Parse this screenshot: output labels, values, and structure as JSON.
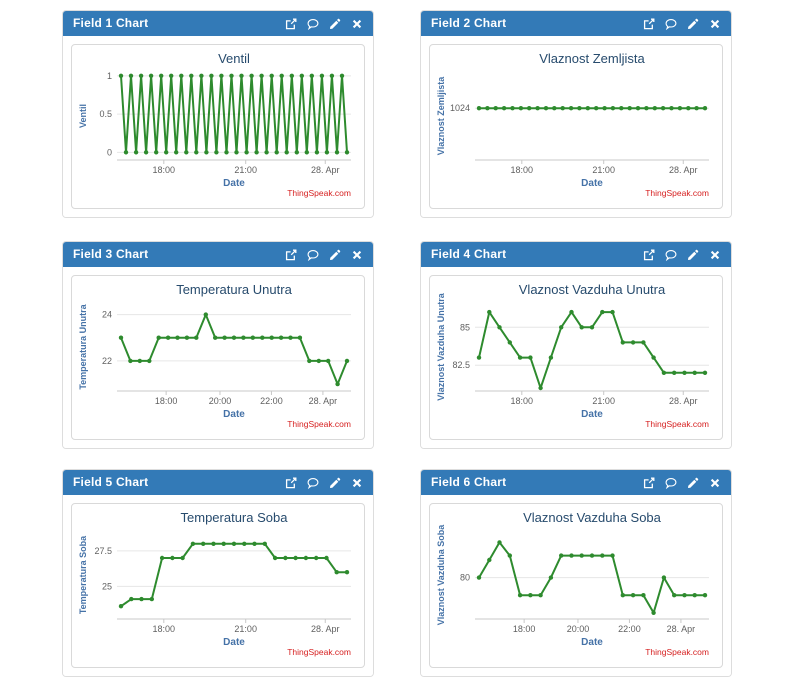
{
  "page": {
    "background": "#ffffff"
  },
  "colors": {
    "header_bg": "#337ab7",
    "header_text": "#ffffff",
    "panel_border": "#dddddd",
    "chart_box_border": "#d9d9d9",
    "line": "#2e8b2e",
    "chart_title": "#274b6d",
    "axis_title": "#4572a7",
    "tick_label": "#606060",
    "grid": "#e6e6e6",
    "axis_line": "#c8c8c8",
    "credits": "#d62020"
  },
  "header_icons": [
    "external-link-icon",
    "comment-icon",
    "edit-icon",
    "close-icon"
  ],
  "panels": [
    {
      "header": {
        "title": "Field 1 Chart"
      }
    },
    {
      "header": {
        "title": "Field 2 Chart"
      }
    },
    {
      "header": {
        "title": "Field 3 Chart"
      }
    },
    {
      "header": {
        "title": "Field 4 Chart"
      }
    },
    {
      "header": {
        "title": "Field 5 Chart"
      }
    },
    {
      "header": {
        "title": "Field 6 Chart"
      }
    }
  ],
  "chart_data": [
    {
      "type": "line",
      "title": "Ventil",
      "ylabel": "Ventil",
      "xlabel": "Date",
      "credits": "ThingSpeak.com",
      "grid": true,
      "legend": false,
      "ylim": [
        -0.1,
        1.05
      ],
      "yticks": [
        {
          "v": 0,
          "label": "0"
        },
        {
          "v": 0.5,
          "label": "0.5"
        },
        {
          "v": 1,
          "label": "1"
        }
      ],
      "xticks": [
        {
          "label": "18:00",
          "pos": 0.2
        },
        {
          "label": "21:00",
          "pos": 0.55
        },
        {
          "label": "28. Apr",
          "pos": 0.89
        }
      ],
      "values": [
        1,
        0,
        1,
        0,
        1,
        0,
        1,
        0,
        1,
        0,
        1,
        0,
        1,
        0,
        1,
        0,
        1,
        0,
        1,
        0,
        1,
        0,
        1,
        0,
        1,
        0,
        1,
        0,
        1,
        0,
        1,
        0,
        1,
        0,
        1,
        0,
        1,
        0,
        1,
        0,
        1,
        0,
        1,
        0,
        1,
        0
      ]
    },
    {
      "type": "line",
      "title": "Vlaznost Zemljista",
      "ylabel": "Vlaznost Zemljista",
      "xlabel": "Date",
      "credits": "ThingSpeak.com",
      "grid": true,
      "legend": false,
      "ylim": [
        1014,
        1031
      ],
      "yticks": [
        {
          "v": 1024,
          "label": "1024"
        }
      ],
      "xticks": [
        {
          "label": "18:00",
          "pos": 0.2
        },
        {
          "label": "21:00",
          "pos": 0.55
        },
        {
          "label": "28. Apr",
          "pos": 0.89
        }
      ],
      "values": [
        1024,
        1024,
        1024,
        1024,
        1024,
        1024,
        1024,
        1024,
        1024,
        1024,
        1024,
        1024,
        1024,
        1024,
        1024,
        1024,
        1024,
        1024,
        1024,
        1024,
        1024,
        1024,
        1024,
        1024,
        1024,
        1024,
        1024,
        1024
      ]
    },
    {
      "type": "line",
      "title": "Temperatura Unutra",
      "ylabel": "Temperatura Unutra",
      "xlabel": "Date",
      "credits": "ThingSpeak.com",
      "grid": true,
      "legend": false,
      "ylim": [
        20.7,
        24.5
      ],
      "yticks": [
        {
          "v": 22,
          "label": "22"
        },
        {
          "v": 24,
          "label": "24"
        }
      ],
      "xticks": [
        {
          "label": "18:00",
          "pos": 0.21
        },
        {
          "label": "20:00",
          "pos": 0.44
        },
        {
          "label": "22:00",
          "pos": 0.66
        },
        {
          "label": "28. Apr",
          "pos": 0.88
        }
      ],
      "values": [
        23,
        22,
        22,
        22,
        23,
        23,
        23,
        23,
        23,
        24,
        23,
        23,
        23,
        23,
        23,
        23,
        23,
        23,
        23,
        23,
        22,
        22,
        22,
        21,
        22
      ]
    },
    {
      "type": "line",
      "title": "Vlaznost Vazduha Unutra",
      "ylabel": "Vlaznost Vazduha Unutra",
      "xlabel": "Date",
      "credits": "ThingSpeak.com",
      "grid": true,
      "legend": false,
      "ylim": [
        80.8,
        86.6
      ],
      "yticks": [
        {
          "v": 82.5,
          "label": "82.5"
        },
        {
          "v": 85,
          "label": "85"
        }
      ],
      "xticks": [
        {
          "label": "18:00",
          "pos": 0.2
        },
        {
          "label": "21:00",
          "pos": 0.55
        },
        {
          "label": "28. Apr",
          "pos": 0.89
        }
      ],
      "values": [
        83,
        86,
        85,
        84,
        83,
        83,
        81,
        83,
        85,
        86,
        85,
        85,
        86,
        86,
        84,
        84,
        84,
        83,
        82,
        82,
        82,
        82,
        82
      ]
    },
    {
      "type": "line",
      "title": "Temperatura Soba",
      "ylabel": "Temperatura Soba",
      "xlabel": "Date",
      "credits": "ThingSpeak.com",
      "grid": true,
      "legend": false,
      "ylim": [
        22.7,
        28.9
      ],
      "yticks": [
        {
          "v": 25,
          "label": "25"
        },
        {
          "v": 27.5,
          "label": "27.5"
        }
      ],
      "xticks": [
        {
          "label": "18:00",
          "pos": 0.2
        },
        {
          "label": "21:00",
          "pos": 0.55
        },
        {
          "label": "28. Apr",
          "pos": 0.89
        }
      ],
      "values": [
        23.6,
        24.1,
        24.1,
        24.1,
        27,
        27,
        27,
        28,
        28,
        28,
        28,
        28,
        28,
        28,
        28,
        27,
        27,
        27,
        27,
        27,
        27,
        26,
        26
      ]
    },
    {
      "type": "line",
      "title": "Vlaznost Vazduha Soba",
      "ylabel": "Vlaznost Vazduha Soba",
      "xlabel": "Date",
      "credits": "ThingSpeak.com",
      "grid": true,
      "legend": false,
      "ylim": [
        75.3,
        85.3
      ],
      "yticks": [
        {
          "v": 80,
          "label": "80"
        }
      ],
      "xticks": [
        {
          "label": "18:00",
          "pos": 0.21
        },
        {
          "label": "20:00",
          "pos": 0.44
        },
        {
          "label": "22:00",
          "pos": 0.66
        },
        {
          "label": "28. Apr",
          "pos": 0.88
        }
      ],
      "values": [
        80,
        82,
        84,
        82.5,
        78,
        78,
        78,
        80,
        82.5,
        82.5,
        82.5,
        82.5,
        82.5,
        82.5,
        78,
        78,
        78,
        76,
        80,
        78,
        78,
        78,
        78
      ]
    }
  ]
}
